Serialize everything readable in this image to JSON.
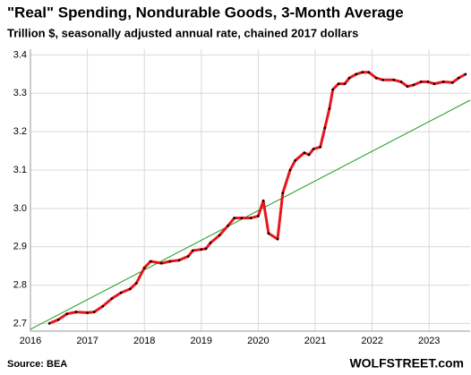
{
  "chart_data": {
    "type": "line",
    "title": "\"Real\" Spending, Nondurable Goods, 3-Month Average",
    "subtitle": "Trillion $, seasonally adjusted annual rate, chained 2017 dollars",
    "source": "Source: BEA",
    "watermark": "WOLFSTREET.com",
    "xlim": [
      2016,
      2023.72
    ],
    "xticks": [
      2016,
      2017,
      2018,
      2019,
      2020,
      2021,
      2022,
      2023
    ],
    "ylim": [
      2.68,
      3.415
    ],
    "yticks": [
      {
        "value": 2.7,
        "label": "2.7"
      },
      {
        "value": 2.8,
        "label": "2.8"
      },
      {
        "value": 2.9,
        "label": "2.9"
      },
      {
        "value": 3,
        "label": "3.0"
      },
      {
        "value": 3.1,
        "label": "3.1"
      },
      {
        "value": 3.2,
        "label": "3.2"
      },
      {
        "value": 3.3,
        "label": "3.3"
      },
      {
        "value": 3.4,
        "label": "3.4"
      }
    ],
    "grid": true,
    "series": [
      {
        "color": "#e8151b",
        "markers": true,
        "x": [
          2016.33,
          2016.49,
          2016.64,
          2016.8,
          2017.0,
          2017.12,
          2017.27,
          2017.43,
          2017.59,
          2017.75,
          2017.86,
          2018.0,
          2018.11,
          2018.3,
          2018.45,
          2018.61,
          2018.77,
          2018.85,
          2019.0,
          2019.08,
          2019.16,
          2019.32,
          2019.47,
          2019.58,
          2019.71,
          2019.87,
          2020.0,
          2020.09,
          2020.18,
          2020.34,
          2020.43,
          2020.56,
          2020.65,
          2020.81,
          2020.89,
          2020.97,
          2021.09,
          2021.17,
          2021.25,
          2021.31,
          2021.41,
          2021.52,
          2021.6,
          2021.72,
          2021.83,
          2021.94,
          2022.07,
          2022.19,
          2022.38,
          2022.51,
          2022.62,
          2022.73,
          2022.86,
          2022.98,
          2023.09,
          2023.25,
          2023.41,
          2023.52,
          2023.64
        ],
        "values": [
          2.7,
          2.71,
          2.725,
          2.73,
          2.728,
          2.73,
          2.745,
          2.765,
          2.78,
          2.79,
          2.805,
          2.845,
          2.862,
          2.857,
          2.862,
          2.865,
          2.875,
          2.89,
          2.893,
          2.895,
          2.91,
          2.93,
          2.955,
          2.975,
          2.975,
          2.975,
          2.98,
          3.02,
          2.935,
          2.92,
          3.04,
          3.1,
          3.125,
          3.145,
          3.14,
          3.155,
          3.16,
          3.21,
          3.26,
          3.31,
          3.325,
          3.325,
          3.34,
          3.35,
          3.355,
          3.355,
          3.34,
          3.335,
          3.335,
          3.33,
          3.318,
          3.322,
          3.33,
          3.33,
          3.325,
          3.33,
          3.328,
          3.34,
          3.35
        ]
      },
      {
        "color": "#1a9a1a",
        "markers": false,
        "x": [
          2016.0,
          2023.72
        ],
        "values": [
          2.685,
          3.282
        ]
      }
    ]
  }
}
